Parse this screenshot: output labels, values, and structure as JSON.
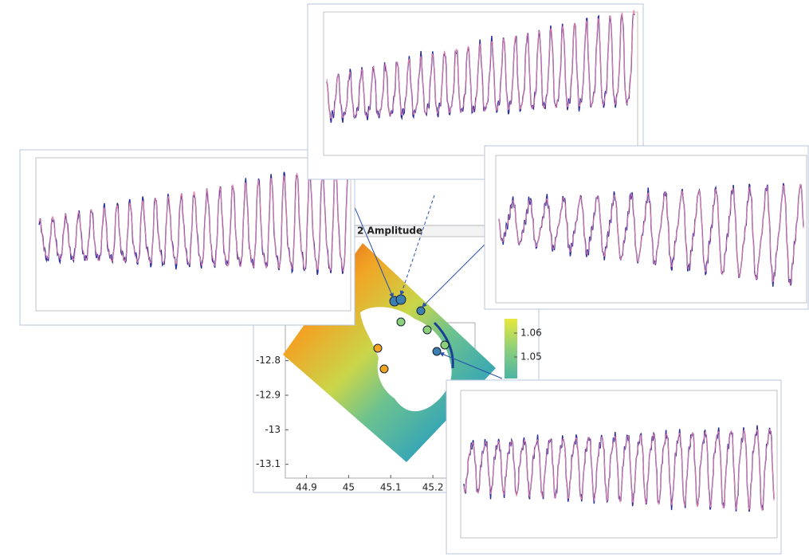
{
  "map": {
    "title": "2  Amplitude",
    "xlim": [
      44.85,
      45.3
    ],
    "xticks": [
      44.9,
      45,
      45.1,
      45.2
    ],
    "ylim": [
      -13.14,
      -12.69
    ],
    "yticks": [
      -12.8,
      -12.9,
      -13,
      -13.1
    ],
    "clim": [
      1.041,
      1.066
    ],
    "cticks": [
      1.06,
      1.05
    ]
  }
}
